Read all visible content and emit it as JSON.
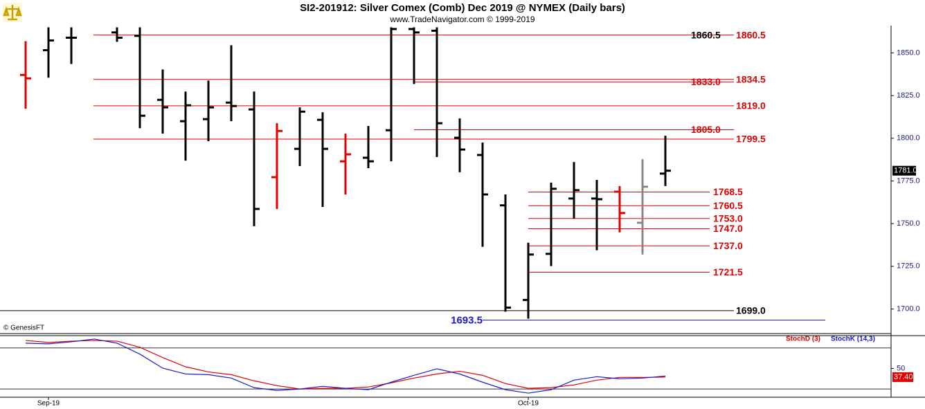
{
  "chart_data": [
    {
      "type": "ohlc",
      "title": "SI2-201912:  Silver Comex (Comb) Dec 2019 @ NYMEX  (Daily bars)",
      "subtitle": "www.TradeNavigator.com © 1999-2019",
      "watermark": "© GenesisFT",
      "categories": [
        null,
        "Sep-19",
        null,
        null,
        null,
        null,
        null,
        null,
        null,
        null,
        null,
        null,
        null,
        null,
        null,
        null,
        null,
        null,
        null,
        null,
        null,
        null,
        "Oct-19",
        null,
        null,
        null,
        null,
        null,
        null
      ],
      "open": [
        1837.1,
        1851.6,
        1858.9,
        null,
        1862,
        1860,
        1822.5,
        1810.0,
        1811.2,
        1820.9,
        1816.9,
        1777.2,
        1793.8,
        1810.8,
        1786.5,
        1788.6,
        1804.7,
        1864,
        1863,
        1800.3,
        1790.2,
        1760.7,
        1705.3,
        1732.3,
        1764.7,
        1764.7,
        1768.7,
        1750.5,
        1779.3
      ],
      "high": [
        1856.9,
        1865,
        1865,
        null,
        1865,
        1865,
        1840.3,
        1827.4,
        1833.8,
        1854.5,
        1827.4,
        1808.8,
        1818.1,
        1815.2,
        1802.7,
        1807.2,
        1865,
        1865,
        1865,
        1811.6,
        1797.5,
        1767.1,
        1738.8,
        1774.0,
        1786.1,
        1775.6,
        1772.0,
        1787.7,
        1801.5
      ],
      "low": [
        1817.3,
        1835.5,
        1843.5,
        null,
        1856.5,
        1805.9,
        1802.7,
        1786.9,
        1798.3,
        1810.0,
        1748.5,
        1758.6,
        1783.7,
        1759.8,
        1767.1,
        1782.5,
        1786.5,
        1831.8,
        1789.0,
        1780.1,
        1736.4,
        1698.4,
        1694.3,
        1725.1,
        1753.0,
        1734.4,
        1744.9,
        1731.9,
        1772.0
      ],
      "close": [
        1835.1,
        1857.3,
        1858.9,
        null,
        1858.9,
        1813.2,
        1818.1,
        1819.3,
        1818.1,
        1818.9,
        1758.6,
        1804.3,
        1815.6,
        1793.8,
        1790.6,
        1786.5,
        1864,
        1862,
        1808.8,
        1793.4,
        1767.1,
        1700.8,
        1731.9,
        1770.4,
        1769.6,
        1764.3,
        1756.2,
        1771.6,
        1781
      ],
      "bar_colors": [
        "#e00000",
        "#000000",
        "#000000",
        null,
        "#000000",
        "#000000",
        "#000000",
        "#000000",
        "#000000",
        "#000000",
        "#000000",
        "#e00000",
        "#000000",
        "#000000",
        "#e00000",
        "#000000",
        "#000000",
        "#000000",
        "#000000",
        "#000000",
        "#000000",
        "#000000",
        "#000000",
        "#000000",
        "#000000",
        "#000000",
        "#e00000",
        "#888888",
        "#000000"
      ],
      "ylim": [
        1686,
        1866
      ],
      "yticks": [
        {
          "value": 1700,
          "label": "1700.0"
        },
        {
          "value": 1725,
          "label": "1725.0"
        },
        {
          "value": 1750,
          "label": "1750.0"
        },
        {
          "value": 1775,
          "label": "1775.0"
        },
        {
          "value": 1800,
          "label": "1800.0"
        },
        {
          "value": 1825,
          "label": "1825.0"
        },
        {
          "value": 1850,
          "label": "1850.0"
        }
      ],
      "levels": [
        {
          "value": 1860.5,
          "label": "1860.5",
          "color": "#000000"
        },
        {
          "value": 1860.5,
          "label": "1860.5",
          "color": "#e00000"
        },
        {
          "value": 1834.5,
          "label": "1834.5",
          "color": "#e00000"
        },
        {
          "value": 1833,
          "label": "1833.0",
          "color": "#e00000"
        },
        {
          "value": 1819,
          "label": "1819.0",
          "color": "#e00000"
        },
        {
          "value": 1805,
          "label": "1805.0",
          "color": "#e00000"
        },
        {
          "value": 1799.5,
          "label": "1799.5",
          "color": "#e00000"
        },
        {
          "value": 1768.5,
          "label": "1768.5",
          "color": "#e00000"
        },
        {
          "value": 1760.5,
          "label": "1760.5",
          "color": "#e00000"
        },
        {
          "value": 1753,
          "label": "1753.0",
          "color": "#e00000"
        },
        {
          "value": 1747,
          "label": "1747.0",
          "color": "#e00000"
        },
        {
          "value": 1737,
          "label": "1737.0",
          "color": "#e00000"
        },
        {
          "value": 1721.5,
          "label": "1721.5",
          "color": "#e00000"
        },
        {
          "value": 1699,
          "label": "1699.0",
          "color": "#000000"
        },
        {
          "value": 1693.5,
          "label": "1693.5",
          "color": "#1a1ad0"
        }
      ],
      "last_price": {
        "value": 1781,
        "label": "1781.0"
      }
    },
    {
      "type": "line",
      "series": [
        {
          "name": "StochD (3)",
          "color": "#e00000",
          "values": [
            91,
            88,
            90,
            91,
            90,
            81,
            66,
            52.5,
            45,
            41,
            32,
            25,
            20,
            21,
            21,
            23,
            29,
            36,
            42,
            46,
            40,
            28,
            21,
            22,
            26,
            33,
            37,
            37,
            37.4
          ]
        },
        {
          "name": "StochK (14,3)",
          "color": "#1a1ad0",
          "values": [
            87,
            86,
            89,
            93,
            87,
            71,
            50.5,
            42,
            41,
            36,
            22,
            18,
            20,
            24,
            21,
            19,
            30,
            40,
            49.5,
            42,
            30,
            19,
            14,
            19,
            33,
            38,
            35,
            36,
            39
          ]
        }
      ],
      "ylim": [
        8,
        97
      ],
      "yticks": [
        50
      ],
      "hlines": [
        20,
        80
      ],
      "last_value": {
        "value": 37.4,
        "label": "37.40"
      }
    }
  ]
}
